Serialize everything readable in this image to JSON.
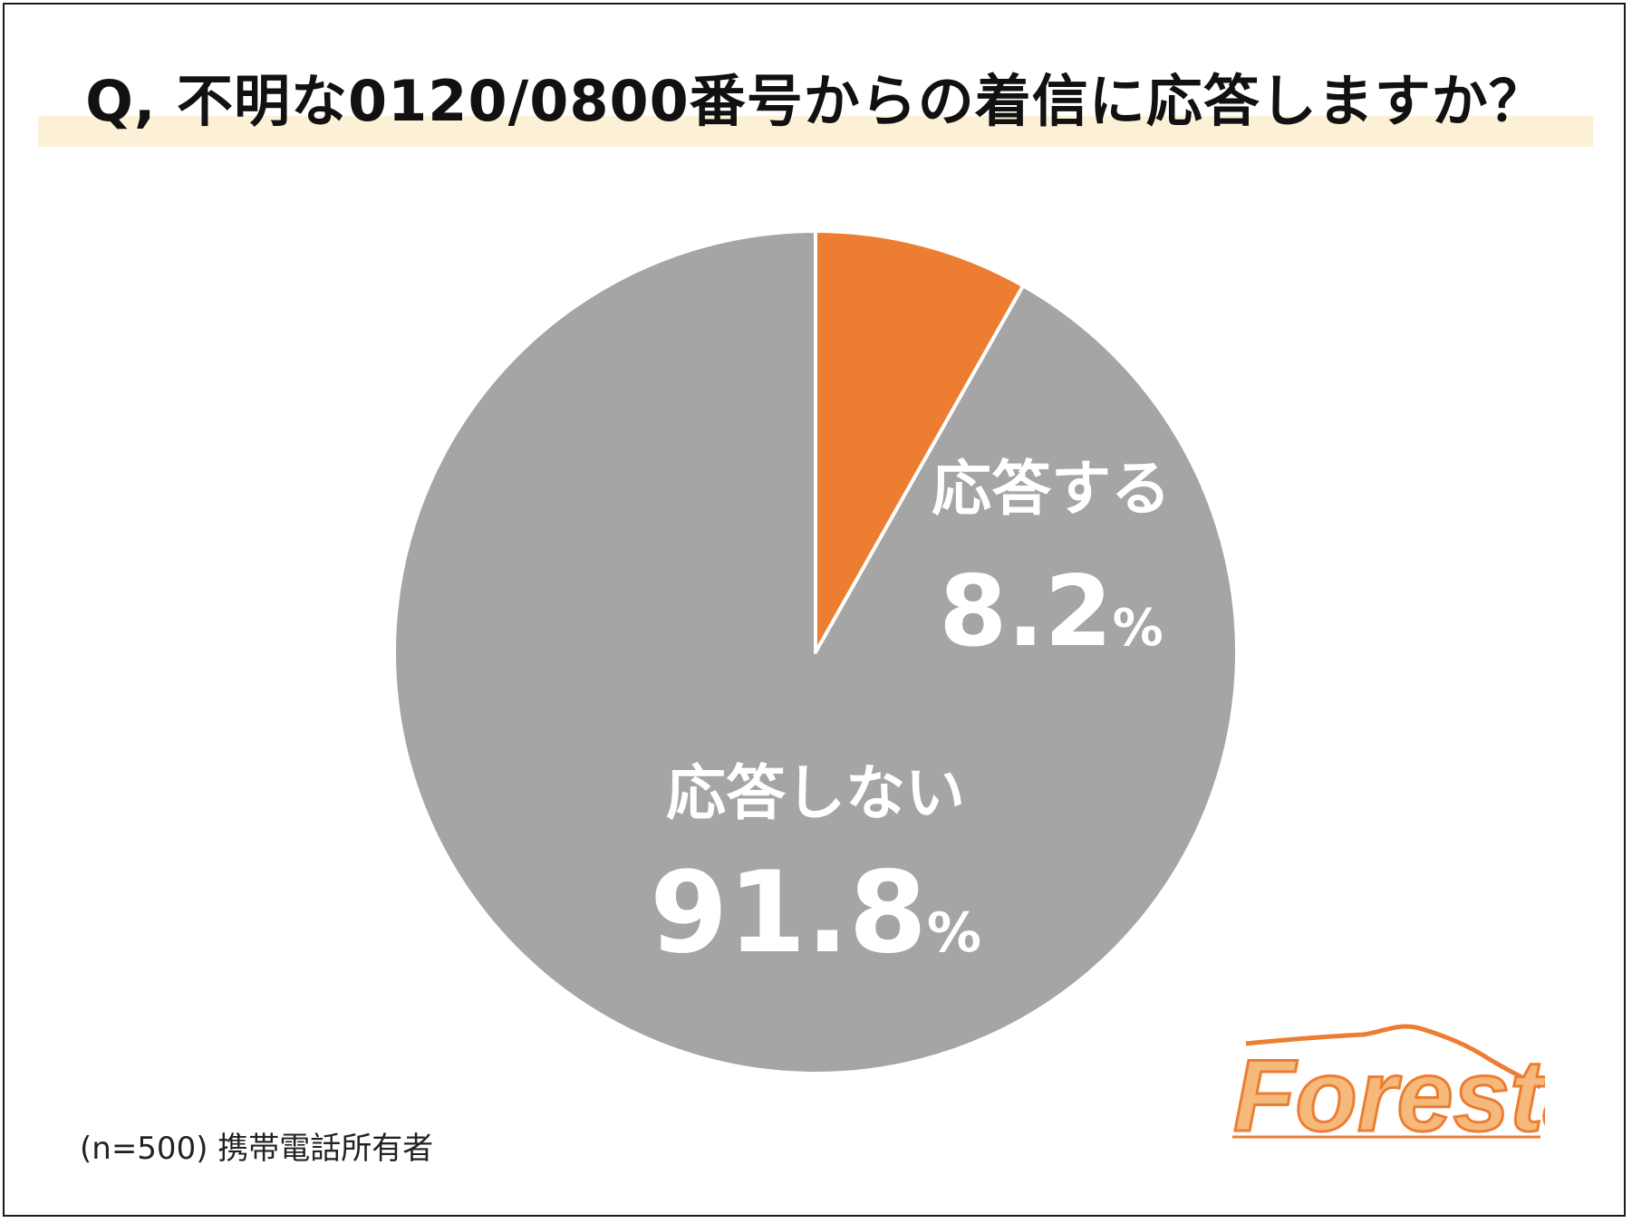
{
  "title": "Q, 不明な0120/0800番号からの着信に応答しますか？",
  "footnote": "(n=500) 携帯電話所有者",
  "logo": {
    "text": "Foresta"
  },
  "colors": {
    "answer": "#ed7d31",
    "no_answer": "#a5a5a5",
    "title_highlight": "#fcf0d6",
    "label_text": "#ffffff"
  },
  "chart_data": {
    "type": "pie",
    "title": "Q, 不明な0120/0800番号からの着信に応答しますか？",
    "categories": [
      "応答する",
      "応答しない"
    ],
    "values": [
      8.2,
      91.8
    ],
    "labels": [
      {
        "name": "応答する",
        "value_text": "8.2",
        "unit": "%"
      },
      {
        "name": "応答しない",
        "value_text": "91.8",
        "unit": "%"
      }
    ],
    "start": "12 o'clock",
    "direction": "clockwise",
    "n": 500
  }
}
